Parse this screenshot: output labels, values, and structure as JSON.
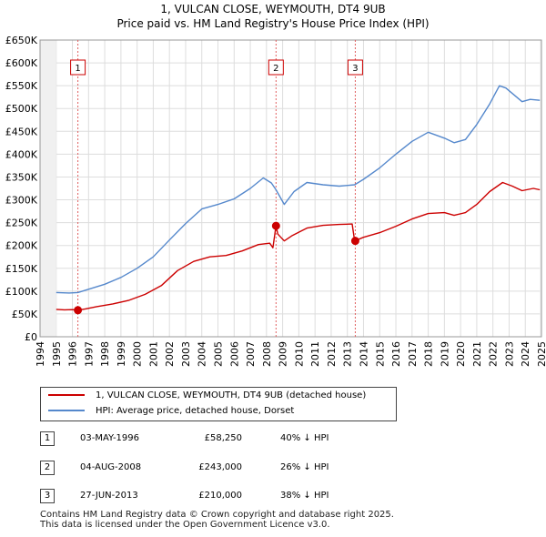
{
  "chart_data": {
    "type": "line",
    "title_line1": "1, VULCAN CLOSE, WEYMOUTH, DT4 9UB",
    "title_line2": "Price paid vs. HM Land Registry's House Price Index (HPI)",
    "xlim": [
      1994,
      2025
    ],
    "ylim": [
      0,
      650000
    ],
    "y_ticks": [
      {
        "value": 0,
        "label": "£0"
      },
      {
        "value": 50000,
        "label": "£50K"
      },
      {
        "value": 100000,
        "label": "£100K"
      },
      {
        "value": 150000,
        "label": "£150K"
      },
      {
        "value": 200000,
        "label": "£200K"
      },
      {
        "value": 250000,
        "label": "£250K"
      },
      {
        "value": 300000,
        "label": "£300K"
      },
      {
        "value": 350000,
        "label": "£350K"
      },
      {
        "value": 400000,
        "label": "£400K"
      },
      {
        "value": 450000,
        "label": "£450K"
      },
      {
        "value": 500000,
        "label": "£500K"
      },
      {
        "value": 550000,
        "label": "£550K"
      },
      {
        "value": 600000,
        "label": "£600K"
      },
      {
        "value": 650000,
        "label": "£650K"
      }
    ],
    "x_ticks": [
      "1994",
      "1995",
      "1996",
      "1997",
      "1998",
      "1999",
      "2000",
      "2001",
      "2002",
      "2003",
      "2004",
      "2005",
      "2006",
      "2007",
      "2008",
      "2009",
      "2010",
      "2011",
      "2012",
      "2013",
      "2014",
      "2015",
      "2016",
      "2017",
      "2018",
      "2019",
      "2020",
      "2021",
      "2022",
      "2023",
      "2024",
      "2025"
    ],
    "series": [
      {
        "name": "1, VULCAN CLOSE, WEYMOUTH, DT4 9UB (detached house)",
        "color": "#cc0000",
        "points": [
          [
            1995,
            60000
          ],
          [
            1995.5,
            59000
          ],
          [
            1996.0,
            59500
          ],
          [
            1996.34,
            58250
          ],
          [
            1996.8,
            61000
          ],
          [
            1997.5,
            66000
          ],
          [
            1998.5,
            72000
          ],
          [
            1999.5,
            80000
          ],
          [
            2000.5,
            93000
          ],
          [
            2001.5,
            112000
          ],
          [
            2002.5,
            145000
          ],
          [
            2003.5,
            165000
          ],
          [
            2004.5,
            175000
          ],
          [
            2005.5,
            178000
          ],
          [
            2006.5,
            188000
          ],
          [
            2007.5,
            202000
          ],
          [
            2008.2,
            205000
          ],
          [
            2008.4,
            195000
          ],
          [
            2008.59,
            243000
          ],
          [
            2008.7,
            225000
          ],
          [
            2009.1,
            210000
          ],
          [
            2009.6,
            222000
          ],
          [
            2010.5,
            238000
          ],
          [
            2011.5,
            244000
          ],
          [
            2012.5,
            246000
          ],
          [
            2013.3,
            247000
          ],
          [
            2013.45,
            210000
          ],
          [
            2014,
            218000
          ],
          [
            2015,
            228000
          ],
          [
            2016,
            242000
          ],
          [
            2017,
            258000
          ],
          [
            2018,
            270000
          ],
          [
            2019,
            272000
          ],
          [
            2019.6,
            266000
          ],
          [
            2020.3,
            272000
          ],
          [
            2021,
            290000
          ],
          [
            2021.8,
            318000
          ],
          [
            2022.6,
            338000
          ],
          [
            2023.2,
            330000
          ],
          [
            2023.8,
            320000
          ],
          [
            2024.5,
            325000
          ],
          [
            2024.9,
            322000
          ]
        ]
      },
      {
        "name": "HPI: Average price, detached house, Dorset",
        "color": "#5588cc",
        "points": [
          [
            1995,
            97000
          ],
          [
            1995.8,
            96000
          ],
          [
            1996.34,
            97000
          ],
          [
            1997,
            104000
          ],
          [
            1998,
            115000
          ],
          [
            1999,
            130000
          ],
          [
            2000,
            150000
          ],
          [
            2001,
            175000
          ],
          [
            2002,
            212000
          ],
          [
            2003,
            248000
          ],
          [
            2004,
            280000
          ],
          [
            2005,
            290000
          ],
          [
            2006,
            302000
          ],
          [
            2007,
            325000
          ],
          [
            2007.8,
            348000
          ],
          [
            2008.3,
            337000
          ],
          [
            2008.59,
            322000
          ],
          [
            2009.1,
            290000
          ],
          [
            2009.7,
            318000
          ],
          [
            2010.5,
            338000
          ],
          [
            2011.5,
            333000
          ],
          [
            2012.5,
            330000
          ],
          [
            2013.45,
            333000
          ],
          [
            2014,
            345000
          ],
          [
            2015,
            370000
          ],
          [
            2016,
            400000
          ],
          [
            2017,
            428000
          ],
          [
            2018,
            448000
          ],
          [
            2019,
            435000
          ],
          [
            2019.6,
            425000
          ],
          [
            2020.3,
            432000
          ],
          [
            2021,
            465000
          ],
          [
            2021.8,
            510000
          ],
          [
            2022.4,
            550000
          ],
          [
            2022.8,
            545000
          ],
          [
            2023.3,
            530000
          ],
          [
            2023.8,
            515000
          ],
          [
            2024.3,
            520000
          ],
          [
            2024.9,
            518000
          ]
        ]
      }
    ],
    "markers": [
      {
        "label": "1",
        "x": 1996.34,
        "value": 58250
      },
      {
        "label": "2",
        "x": 2008.59,
        "value": 243000
      },
      {
        "label": "3",
        "x": 2013.49,
        "value": 210000
      }
    ]
  },
  "legend": {
    "items": [
      {
        "label": "1, VULCAN CLOSE, WEYMOUTH, DT4 9UB (detached house)",
        "color": "#cc0000"
      },
      {
        "label": "HPI: Average price, detached house, Dorset",
        "color": "#5588cc"
      }
    ]
  },
  "sales": [
    {
      "num": "1",
      "date": "03-MAY-1996",
      "price": "£58,250",
      "hpi": "40% ↓ HPI"
    },
    {
      "num": "2",
      "date": "04-AUG-2008",
      "price": "£243,000",
      "hpi": "26% ↓ HPI"
    },
    {
      "num": "3",
      "date": "27-JUN-2013",
      "price": "£210,000",
      "hpi": "38% ↓ HPI"
    }
  ],
  "footer": {
    "line1": "Contains HM Land Registry data © Crown copyright and database right 2025.",
    "line2": "This data is licensed under the Open Government Licence v3.0."
  }
}
